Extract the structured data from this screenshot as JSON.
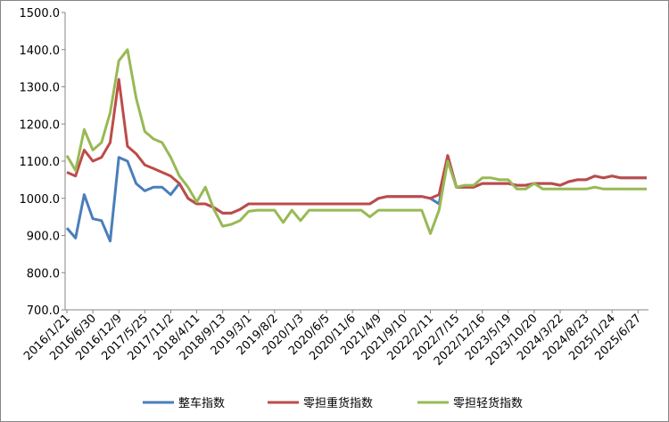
{
  "chart_data": {
    "type": "line",
    "categories": [
      "2016/1/21",
      null,
      null,
      "2016/6/30",
      null,
      null,
      "2016/12/9",
      null,
      null,
      "2017/5/25",
      null,
      null,
      "2017/11/2",
      null,
      null,
      "2018/4/11",
      null,
      null,
      "2018/9/13",
      null,
      null,
      "2019/3/1",
      null,
      null,
      "2019/8/2",
      null,
      null,
      "2020/1/3",
      null,
      null,
      "2020/6/5",
      null,
      null,
      "2020/11/6",
      null,
      null,
      "2021/4/9",
      null,
      null,
      "2021/9/10",
      null,
      null,
      "2022/2/11",
      null,
      null,
      "2022/7/15",
      null,
      null,
      "2022/12/16",
      null,
      null,
      "2023/5/19",
      null,
      null,
      "2023/10/20",
      null,
      null,
      "2024/3/22",
      null,
      null,
      "2024/8/23",
      null,
      null,
      "2025/1/24",
      null,
      null,
      "2025/6/27",
      null
    ],
    "series": [
      {
        "name": "整车指数",
        "color": "#4a7ebb",
        "values": [
          920,
          893,
          1010,
          945,
          940,
          885,
          1110,
          1100,
          1040,
          1020,
          1030,
          1030,
          1010,
          1040,
          1000,
          985,
          985,
          975,
          960,
          960,
          970,
          985,
          985,
          985,
          985,
          985,
          985,
          985,
          985,
          985,
          985,
          985,
          985,
          985,
          985,
          985,
          1000,
          1005,
          1005,
          1005,
          1005,
          1005,
          1000,
          985,
          1115,
          1030,
          1030,
          1030,
          1040,
          1040,
          1040,
          1040,
          1035,
          1035,
          1040,
          1040,
          1040,
          1035,
          1045,
          1050,
          1050,
          1060,
          1055,
          1060,
          1055,
          1055,
          1055,
          1055
        ]
      },
      {
        "name": "零担重货指数",
        "color": "#be4b48",
        "values": [
          1070,
          1060,
          1130,
          1100,
          1110,
          1150,
          1320,
          1140,
          1120,
          1090,
          1080,
          1070,
          1060,
          1040,
          1000,
          985,
          985,
          975,
          960,
          960,
          970,
          985,
          985,
          985,
          985,
          985,
          985,
          985,
          985,
          985,
          985,
          985,
          985,
          985,
          985,
          985,
          1000,
          1005,
          1005,
          1005,
          1005,
          1005,
          1000,
          1010,
          1115,
          1030,
          1030,
          1030,
          1040,
          1040,
          1040,
          1040,
          1035,
          1035,
          1040,
          1040,
          1040,
          1035,
          1045,
          1050,
          1050,
          1060,
          1055,
          1060,
          1055,
          1055,
          1055,
          1055
        ]
      },
      {
        "name": "零担轻货指数",
        "color": "#98b954",
        "values": [
          1115,
          1075,
          1185,
          1130,
          1150,
          1230,
          1370,
          1400,
          1270,
          1180,
          1160,
          1150,
          1110,
          1060,
          1030,
          990,
          1030,
          970,
          925,
          930,
          940,
          965,
          968,
          968,
          968,
          935,
          968,
          940,
          968,
          968,
          968,
          968,
          968,
          968,
          968,
          950,
          968,
          968,
          968,
          968,
          968,
          968,
          905,
          968,
          1100,
          1030,
          1035,
          1035,
          1055,
          1055,
          1050,
          1050,
          1025,
          1025,
          1040,
          1025,
          1025,
          1025,
          1025,
          1025,
          1025,
          1030,
          1025,
          1025,
          1025,
          1025,
          1025,
          1025
        ]
      }
    ],
    "ylim": [
      700,
      1500
    ],
    "yticks": [
      {
        "value": 700,
        "label": "700.0"
      },
      {
        "value": 800,
        "label": "800.0"
      },
      {
        "value": 900,
        "label": "900.0"
      },
      {
        "value": 1000,
        "label": "1000.0"
      },
      {
        "value": 1100,
        "label": "1100.0"
      },
      {
        "value": 1200,
        "label": "1200.0"
      },
      {
        "value": 1300,
        "label": "1300.0"
      },
      {
        "value": 1400,
        "label": "1400.0"
      },
      {
        "value": 1500,
        "label": "1500.0"
      }
    ],
    "legend": "bottom"
  }
}
